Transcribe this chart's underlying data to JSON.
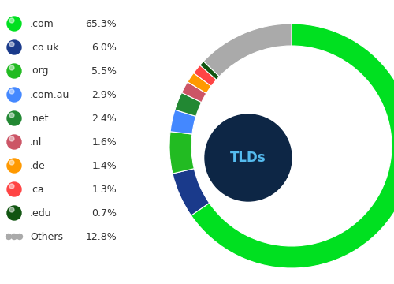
{
  "labels": [
    ".com",
    ".co.uk",
    ".org",
    ".com.au",
    ".net",
    ".nl",
    ".de",
    ".ca",
    ".edu",
    "Others"
  ],
  "values": [
    65.3,
    6.0,
    5.5,
    2.9,
    2.4,
    1.6,
    1.4,
    1.3,
    0.7,
    12.8
  ],
  "colors": [
    "#00e020",
    "#1a3a8b",
    "#22bb22",
    "#4488ff",
    "#228833",
    "#cc5566",
    "#ff9900",
    "#ff4444",
    "#115511",
    "#aaaaaa"
  ],
  "center_label": "TLDs",
  "center_bg": "#0d2645",
  "center_text_color": "#55bbee",
  "bg_color": "#ffffff",
  "legend_labels": [
    ".com",
    ".co.uk",
    ".org",
    ".com.au",
    ".net",
    ".nl",
    ".de",
    ".ca",
    ".edu",
    "Others"
  ],
  "legend_values": [
    "65.3%",
    "6.0%",
    "5.5%",
    "2.9%",
    "2.4%",
    "1.6%",
    "1.4%",
    "1.3%",
    "0.7%",
    "12.8%"
  ]
}
